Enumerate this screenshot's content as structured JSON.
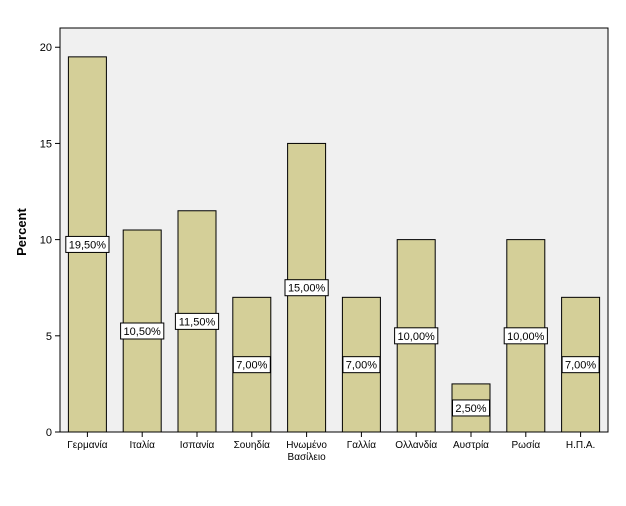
{
  "chart_data": {
    "type": "bar",
    "ylabel": "Percent",
    "ylim": [
      0,
      21
    ],
    "yticks": [
      0,
      5,
      10,
      15,
      20
    ],
    "categories": [
      "Γερμανία",
      "Ιταλία",
      "Ισπανία",
      "Σουηδία",
      "Ηνωμένο Βασίλειο",
      "Γαλλία",
      "Ολλανδία",
      "Αυστρία",
      "Ρωσία",
      "Η.Π.Α."
    ],
    "values": [
      19.5,
      10.5,
      11.5,
      7.0,
      15.0,
      7.0,
      10.0,
      2.5,
      10.0,
      7.0
    ],
    "data_labels": [
      "19,50%",
      "10,50%",
      "11,50%",
      "7,00%",
      "15,00%",
      "7,00%",
      "10,00%",
      "2,50%",
      "10,00%",
      "7,00%"
    ],
    "grid": false,
    "colors": {
      "bar_fill": "#d4cf98",
      "bar_stroke": "#000000",
      "plot_background": "#f0f0f0",
      "page_background": "#ffffff"
    }
  }
}
